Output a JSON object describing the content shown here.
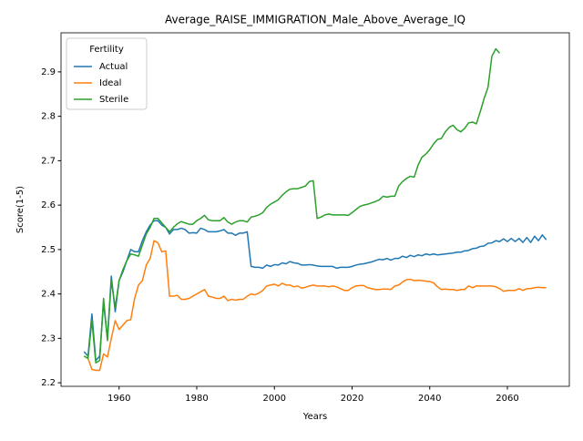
{
  "chart_data": {
    "type": "line",
    "title": "Average_RAISE_IMMIGRATION_Male_Above_Average_IQ",
    "xlabel": "Years",
    "ylabel": "Score(1-5)",
    "legend_title": "Fertility",
    "legend": "upper left",
    "grid": false,
    "x": [
      1951,
      1952,
      1953,
      1954,
      1955,
      1956,
      1957,
      1958,
      1959,
      1960,
      1961,
      1962,
      1963,
      1964,
      1965,
      1966,
      1967,
      1968,
      1969,
      1970,
      1971,
      1972,
      1973,
      1974,
      1975,
      1976,
      1977,
      1978,
      1979,
      1980,
      1981,
      1982,
      1983,
      1984,
      1985,
      1986,
      1987,
      1988,
      1989,
      1990,
      1991,
      1992,
      1993,
      1994,
      1995,
      1996,
      1997,
      1998,
      1999,
      2000,
      2001,
      2002,
      2003,
      2004,
      2005,
      2006,
      2007,
      2008,
      2009,
      2010,
      2011,
      2012,
      2013,
      2014,
      2015,
      2016,
      2017,
      2018,
      2019,
      2020,
      2021,
      2022,
      2023,
      2024,
      2025,
      2026,
      2027,
      2028,
      2029,
      2030,
      2031,
      2032,
      2033,
      2034,
      2035,
      2036,
      2037,
      2038,
      2039,
      2040,
      2041,
      2042,
      2043,
      2044,
      2045,
      2046,
      2047,
      2048,
      2049,
      2050,
      2051,
      2052,
      2053,
      2054,
      2055,
      2056,
      2057,
      2058,
      2059,
      2060,
      2061,
      2062,
      2063,
      2064,
      2065,
      2066,
      2067,
      2068,
      2069,
      2070
    ],
    "series": [
      {
        "name": "Actual",
        "color": "#1f77b4",
        "values": [
          2.27,
          2.26,
          2.355,
          2.25,
          2.26,
          2.38,
          2.3,
          2.44,
          2.36,
          2.43,
          2.45,
          2.475,
          2.5,
          2.495,
          2.495,
          2.52,
          2.54,
          2.555,
          2.565,
          2.565,
          2.555,
          2.55,
          2.535,
          2.545,
          2.545,
          2.548,
          2.545,
          2.537,
          2.538,
          2.537,
          2.548,
          2.545,
          2.54,
          2.54,
          2.54,
          2.542,
          2.545,
          2.537,
          2.537,
          2.532,
          2.537,
          2.537,
          2.54,
          2.462,
          2.46,
          2.46,
          2.458,
          2.465,
          2.462,
          2.466,
          2.465,
          2.47,
          2.468,
          2.473,
          2.47,
          2.469,
          2.465,
          2.465,
          2.466,
          2.465,
          2.463,
          2.462,
          2.462,
          2.462,
          2.462,
          2.458,
          2.46,
          2.46,
          2.46,
          2.462,
          2.465,
          2.467,
          2.468,
          2.47,
          2.472,
          2.475,
          2.478,
          2.477,
          2.48,
          2.476,
          2.48,
          2.48,
          2.485,
          2.482,
          2.487,
          2.484,
          2.488,
          2.486,
          2.49,
          2.488,
          2.49,
          2.488,
          2.489,
          2.49,
          2.491,
          2.492,
          2.494,
          2.494,
          2.497,
          2.498,
          2.502,
          2.503,
          2.507,
          2.508,
          2.514,
          2.515,
          2.52,
          2.518,
          2.524,
          2.518,
          2.525,
          2.518,
          2.525,
          2.516,
          2.527,
          2.516,
          2.53,
          2.52,
          2.533,
          2.522
        ]
      },
      {
        "name": "Ideal",
        "color": "#ff7f0e",
        "values": [
          2.26,
          2.255,
          2.23,
          2.228,
          2.228,
          2.265,
          2.258,
          2.3,
          2.34,
          2.32,
          2.33,
          2.34,
          2.342,
          2.39,
          2.42,
          2.43,
          2.465,
          2.48,
          2.52,
          2.515,
          2.495,
          2.497,
          2.395,
          2.395,
          2.397,
          2.388,
          2.388,
          2.39,
          2.395,
          2.4,
          2.405,
          2.41,
          2.395,
          2.393,
          2.39,
          2.39,
          2.395,
          2.385,
          2.388,
          2.386,
          2.388,
          2.388,
          2.395,
          2.4,
          2.398,
          2.402,
          2.408,
          2.418,
          2.42,
          2.422,
          2.418,
          2.424,
          2.42,
          2.42,
          2.416,
          2.418,
          2.413,
          2.415,
          2.418,
          2.42,
          2.418,
          2.418,
          2.418,
          2.416,
          2.418,
          2.416,
          2.412,
          2.408,
          2.408,
          2.414,
          2.418,
          2.419,
          2.419,
          2.414,
          2.412,
          2.41,
          2.41,
          2.411,
          2.411,
          2.41,
          2.418,
          2.42,
          2.427,
          2.432,
          2.433,
          2.43,
          2.431,
          2.43,
          2.429,
          2.428,
          2.425,
          2.416,
          2.41,
          2.411,
          2.41,
          2.41,
          2.408,
          2.41,
          2.41,
          2.418,
          2.414,
          2.418,
          2.418,
          2.418,
          2.418,
          2.418,
          2.416,
          2.412,
          2.406,
          2.408,
          2.408,
          2.408,
          2.412,
          2.408,
          2.412,
          2.412,
          2.414,
          2.415,
          2.414,
          2.414
        ]
      },
      {
        "name": "Sterile",
        "color": "#2ca02c",
        "values": [
          2.26,
          2.255,
          2.34,
          2.245,
          2.25,
          2.39,
          2.295,
          2.43,
          2.37,
          2.43,
          2.455,
          2.475,
          2.49,
          2.488,
          2.485,
          2.51,
          2.535,
          2.55,
          2.57,
          2.57,
          2.56,
          2.55,
          2.54,
          2.55,
          2.558,
          2.563,
          2.56,
          2.557,
          2.557,
          2.565,
          2.57,
          2.577,
          2.567,
          2.565,
          2.565,
          2.565,
          2.572,
          2.562,
          2.557,
          2.562,
          2.565,
          2.565,
          2.562,
          2.573,
          2.575,
          2.578,
          2.583,
          2.595,
          2.602,
          2.607,
          2.612,
          2.622,
          2.63,
          2.636,
          2.637,
          2.637,
          2.64,
          2.643,
          2.653,
          2.655,
          2.57,
          2.573,
          2.578,
          2.58,
          2.578,
          2.578,
          2.578,
          2.578,
          2.577,
          2.583,
          2.59,
          2.597,
          2.6,
          2.602,
          2.605,
          2.608,
          2.612,
          2.62,
          2.618,
          2.62,
          2.62,
          2.643,
          2.653,
          2.66,
          2.665,
          2.663,
          2.69,
          2.708,
          2.715,
          2.725,
          2.738,
          2.748,
          2.75,
          2.765,
          2.775,
          2.78,
          2.77,
          2.765,
          2.773,
          2.785,
          2.787,
          2.783,
          2.81,
          2.84,
          2.865,
          2.935,
          2.952,
          2.942,
          null,
          null,
          null,
          null,
          null,
          null,
          null,
          null,
          null,
          null,
          null,
          null
        ]
      }
    ],
    "xlim": [
      1945.05,
      2075.95
    ],
    "xticks": [
      1960,
      1980,
      2000,
      2020,
      2040,
      2060
    ],
    "ylim": [
      2.192,
      2.988
    ],
    "yticks": [
      2.2,
      2.3,
      2.4,
      2.5,
      2.6,
      2.7,
      2.8,
      2.9
    ]
  }
}
